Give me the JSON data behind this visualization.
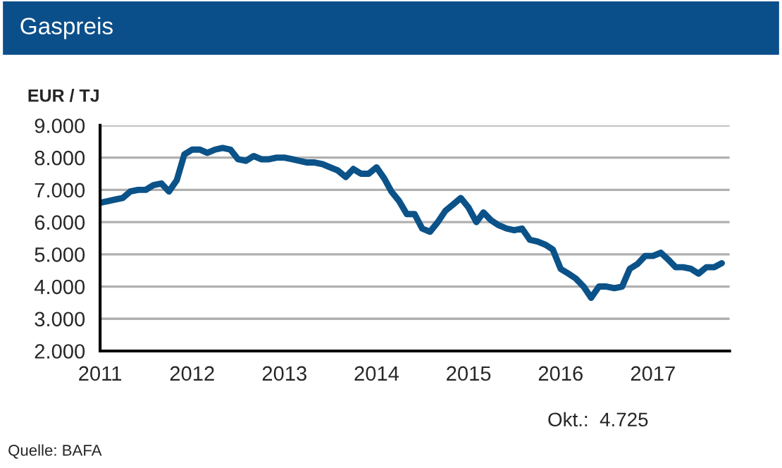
{
  "chart_data": {
    "type": "line",
    "title": "Gaspreis",
    "ylabel": "EUR / TJ",
    "annotations": [
      "Okt.:  4.725",
      "Quelle: BAFA"
    ],
    "x": [
      "2011-01",
      "2011-02",
      "2011-03",
      "2011-04",
      "2011-05",
      "2011-06",
      "2011-07",
      "2011-08",
      "2011-09",
      "2011-10",
      "2011-11",
      "2011-12",
      "2012-01",
      "2012-02",
      "2012-03",
      "2012-04",
      "2012-05",
      "2012-06",
      "2012-07",
      "2012-08",
      "2012-09",
      "2012-10",
      "2012-11",
      "2012-12",
      "2013-01",
      "2013-02",
      "2013-03",
      "2013-04",
      "2013-05",
      "2013-06",
      "2013-07",
      "2013-08",
      "2013-09",
      "2013-10",
      "2013-11",
      "2013-12",
      "2014-01",
      "2014-02",
      "2014-03",
      "2014-04",
      "2014-05",
      "2014-06",
      "2014-07",
      "2014-08",
      "2014-09",
      "2014-10",
      "2014-11",
      "2014-12",
      "2015-01",
      "2015-02",
      "2015-03",
      "2015-04",
      "2015-05",
      "2015-06",
      "2015-07",
      "2015-08",
      "2015-09",
      "2015-10",
      "2015-11",
      "2015-12",
      "2016-01",
      "2016-02",
      "2016-03",
      "2016-04",
      "2016-05",
      "2016-06",
      "2016-07",
      "2016-08",
      "2016-09",
      "2016-10",
      "2016-11",
      "2016-12",
      "2017-01",
      "2017-02",
      "2017-03",
      "2017-04",
      "2017-05",
      "2017-06",
      "2017-07",
      "2017-08",
      "2017-09",
      "2017-10"
    ],
    "series": [
      {
        "color": "#0b5289",
        "values": [
          6600,
          6650,
          6700,
          6750,
          6950,
          7000,
          7000,
          7150,
          7200,
          6950,
          7300,
          8100,
          8250,
          8250,
          8150,
          8250,
          8300,
          8250,
          7950,
          7900,
          8050,
          7950,
          7950,
          8000,
          8000,
          7950,
          7900,
          7850,
          7850,
          7800,
          7700,
          7600,
          7400,
          7650,
          7500,
          7500,
          7700,
          7350,
          6950,
          6650,
          6250,
          6250,
          5800,
          5700,
          6000,
          6350,
          6550,
          6750,
          6450,
          6000,
          6300,
          6050,
          5900,
          5800,
          5750,
          5800,
          5450,
          5400,
          5300,
          5150,
          4550,
          4400,
          4250,
          4000,
          3650,
          4000,
          4000,
          3950,
          4000,
          4550,
          4700,
          4950,
          4950,
          5050,
          4850,
          4600,
          4600,
          4550,
          4400,
          4600,
          4600,
          4725
        ]
      }
    ],
    "xlim": [
      "2011-01",
      "2017-11"
    ],
    "xticks": [
      {
        "value": "2011",
        "label": "2011"
      },
      {
        "value": "2012",
        "label": "2012"
      },
      {
        "value": "2013",
        "label": "2013"
      },
      {
        "value": "2014",
        "label": "2014"
      },
      {
        "value": "2015",
        "label": "2015"
      },
      {
        "value": "2016",
        "label": "2016"
      },
      {
        "value": "2017",
        "label": "2017"
      }
    ],
    "ylim": [
      2000,
      9000
    ],
    "yticks": [
      {
        "value": 2000,
        "label": "2.000"
      },
      {
        "value": 3000,
        "label": "3.000"
      },
      {
        "value": 4000,
        "label": "4.000"
      },
      {
        "value": 5000,
        "label": "5.000"
      },
      {
        "value": 6000,
        "label": "6.000"
      },
      {
        "value": 7000,
        "label": "7.000"
      },
      {
        "value": 8000,
        "label": "8.000"
      },
      {
        "value": 9000,
        "label": "9.000"
      }
    ],
    "grid": "y",
    "legend": false,
    "marker": "none",
    "line_style": "solid"
  }
}
